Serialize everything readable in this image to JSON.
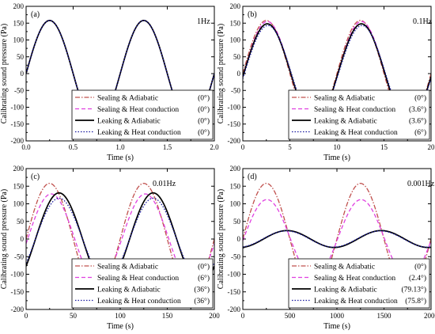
{
  "chart_data": [
    {
      "type": "line",
      "panel_label": "(a)",
      "annotation": "1Hz",
      "xlabel": "Time (s)",
      "ylabel": "Calibrating sound pressure (Pa)",
      "xlim": [
        0,
        2
      ],
      "ylim": [
        -200,
        200
      ],
      "xticks": [
        0.0,
        0.5,
        1.0,
        1.5,
        2.0
      ],
      "xtick_labels": [
        "0.0",
        "0.5",
        "1.0",
        "1.5",
        "2.0"
      ],
      "yticks": [
        -200,
        -150,
        -100,
        -50,
        0,
        50,
        100,
        150,
        200
      ],
      "ytick_labels": [
        "-200",
        "-150",
        "-100",
        "-50",
        "0",
        "50",
        "100",
        "150",
        "200"
      ],
      "legend_position": "bottom-right",
      "frequency": 1,
      "series": [
        {
          "name": "Sealing & Adiabatic",
          "phase_label": "(0°)",
          "amplitude": 158,
          "phase_deg": 0,
          "color": "#c0504d",
          "dash": "dashdot"
        },
        {
          "name": "Sealing & Heat conduction",
          "phase_label": "(0°)",
          "amplitude": 158,
          "phase_deg": 0,
          "color": "#e040e0",
          "dash": "dash"
        },
        {
          "name": "Leaking & Adiabatic",
          "phase_label": "(0°)",
          "amplitude": 158,
          "phase_deg": 0,
          "color": "#000000",
          "dash": "solid"
        },
        {
          "name": "Leaking & Heat conduction",
          "phase_label": "(0°)",
          "amplitude": 158,
          "phase_deg": 0,
          "color": "#1a1aa0",
          "dash": "dot"
        }
      ]
    },
    {
      "type": "line",
      "panel_label": "(b)",
      "annotation": "0.1Hz",
      "xlabel": "Time (s)",
      "ylabel": "Calibrating sound pressure (Pa)",
      "xlim": [
        0,
        20
      ],
      "ylim": [
        -200,
        200
      ],
      "xticks": [
        0,
        5,
        10,
        15,
        20
      ],
      "xtick_labels": [
        "0",
        "5",
        "10",
        "15",
        "20"
      ],
      "yticks": [
        -200,
        -150,
        -100,
        -50,
        0,
        50,
        100,
        150,
        200
      ],
      "ytick_labels": [
        "-200",
        "-150",
        "-100",
        "-50",
        "0",
        "50",
        "100",
        "150",
        "200"
      ],
      "legend_position": "bottom-right",
      "frequency": 0.1,
      "series": [
        {
          "name": "Sealing & Adiabatic",
          "phase_label": "(0°)",
          "amplitude": 158,
          "phase_deg": 0,
          "color": "#c0504d",
          "dash": "dashdot"
        },
        {
          "name": "Sealing & Heat conduction",
          "phase_label": "(3.6°)",
          "amplitude": 155,
          "phase_deg": 3.6,
          "color": "#e040e0",
          "dash": "dash"
        },
        {
          "name": "Leaking & Adiabatic",
          "phase_label": "(3.6°)",
          "amplitude": 148,
          "phase_deg": 3.6,
          "color": "#000000",
          "dash": "solid"
        },
        {
          "name": "Leaking & Heat conduction",
          "phase_label": "(6°)",
          "amplitude": 143,
          "phase_deg": 6,
          "color": "#1a1aa0",
          "dash": "dot"
        }
      ]
    },
    {
      "type": "line",
      "panel_label": "(c)",
      "annotation": "0.01Hz",
      "xlabel": "Time (s)",
      "ylabel": "Calibrating sound pressure (Pa)",
      "xlim": [
        0,
        200
      ],
      "ylim": [
        -200,
        200
      ],
      "xticks": [
        0,
        50,
        100,
        150,
        200
      ],
      "xtick_labels": [
        "0",
        "50",
        "100",
        "150",
        "200"
      ],
      "yticks": [
        -200,
        -150,
        -100,
        -50,
        0,
        50,
        100,
        150,
        200
      ],
      "ytick_labels": [
        "-200",
        "-150",
        "-100",
        "-50",
        "0",
        "50",
        "100",
        "150",
        "200"
      ],
      "legend_position": "bottom-right",
      "frequency": 0.01,
      "series": [
        {
          "name": "Sealing & Adiabatic",
          "phase_label": "(0°)",
          "amplitude": 158,
          "phase_deg": 0,
          "color": "#c0504d",
          "dash": "dashdot"
        },
        {
          "name": "Sealing & Heat conduction",
          "phase_label": "(6°)",
          "amplitude": 128,
          "phase_deg": 6,
          "color": "#e040e0",
          "dash": "dash"
        },
        {
          "name": "Leaking & Adiabatic",
          "phase_label": "(36°)",
          "amplitude": 131,
          "phase_deg": 36,
          "color": "#000000",
          "dash": "solid"
        },
        {
          "name": "Leaking & Heat conduction",
          "phase_label": "(36°)",
          "amplitude": 116,
          "phase_deg": 36,
          "color": "#1a1aa0",
          "dash": "dot"
        }
      ]
    },
    {
      "type": "line",
      "panel_label": "(d)",
      "annotation": "0.001Hz",
      "xlabel": "Time (s)",
      "ylabel": "Calibrating sound pressure (Pa)",
      "xlim": [
        0,
        2000
      ],
      "ylim": [
        -200,
        200
      ],
      "xticks": [
        0,
        500,
        1000,
        1500,
        2000
      ],
      "xtick_labels": [
        "0",
        "500",
        "1000",
        "1500",
        "2000"
      ],
      "yticks": [
        -200,
        -150,
        -100,
        -50,
        0,
        50,
        100,
        150,
        200
      ],
      "ytick_labels": [
        "-200",
        "-150",
        "-100",
        "-50",
        "0",
        "50",
        "100",
        "150",
        "200"
      ],
      "legend_position": "bottom-right",
      "frequency": 0.001,
      "series": [
        {
          "name": "Sealing & Adiabatic",
          "phase_label": "(0°)",
          "amplitude": 158,
          "phase_deg": 0,
          "color": "#c0504d",
          "dash": "dashdot"
        },
        {
          "name": "Sealing & Heat conduction",
          "phase_label": "(2.4°)",
          "amplitude": 112,
          "phase_deg": 2.4,
          "color": "#e040e0",
          "dash": "dash"
        },
        {
          "name": "Leaking & Adiabatic",
          "phase_label": "(79.13°)",
          "amplitude": 24,
          "phase_deg": 79.13,
          "color": "#000000",
          "dash": "solid"
        },
        {
          "name": "Leaking & Heat conduction",
          "phase_label": "(75.8°)",
          "amplitude": 23,
          "phase_deg": 75.8,
          "color": "#1a1aa0",
          "dash": "dot"
        }
      ]
    }
  ]
}
